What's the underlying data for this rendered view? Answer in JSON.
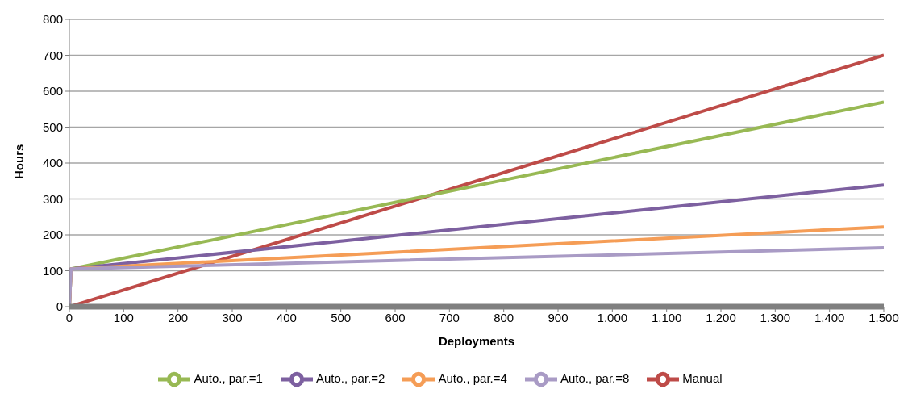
{
  "chart_data": {
    "type": "line",
    "xlabel": "Deployments",
    "ylabel": "Hours",
    "xlim": [
      0,
      1500
    ],
    "xticks": [
      0,
      100,
      200,
      300,
      400,
      500,
      600,
      700,
      800,
      900,
      {
        "value": 1000,
        "label": "1.000"
      },
      {
        "value": 1100,
        "label": "1.100"
      },
      {
        "value": 1200,
        "label": "1.200"
      },
      {
        "value": 1300,
        "label": "1.300"
      },
      {
        "value": 1400,
        "label": "1.400"
      },
      {
        "value": 1500,
        "label": "1.500"
      }
    ],
    "ylim": [
      0,
      800
    ],
    "yticks": [
      0,
      100,
      200,
      300,
      400,
      500,
      600,
      700,
      800
    ],
    "grid": "y",
    "legend": "bottom",
    "marker": "none",
    "line_style": "solid",
    "series": [
      {
        "name": "Manual",
        "color": "#be4b48",
        "x": [
          0,
          1500
        ],
        "values": [
          0,
          700
        ]
      },
      {
        "name": "Auto., par.=1",
        "color": "#98b954",
        "x": [
          0,
          3,
          1500
        ],
        "values": [
          0,
          105,
          570
        ]
      },
      {
        "name": "Auto., par.=2",
        "color": "#7d60a0",
        "x": [
          0,
          3,
          1500
        ],
        "values": [
          0,
          105,
          339
        ]
      },
      {
        "name": "Auto., par.=4",
        "color": "#f59d56",
        "x": [
          0,
          3,
          1500
        ],
        "values": [
          0,
          105,
          222
        ]
      },
      {
        "name": "Auto., par.=8",
        "color": "#a99bc5",
        "x": [
          0,
          3,
          1500
        ],
        "values": [
          0,
          105,
          164
        ]
      }
    ]
  }
}
